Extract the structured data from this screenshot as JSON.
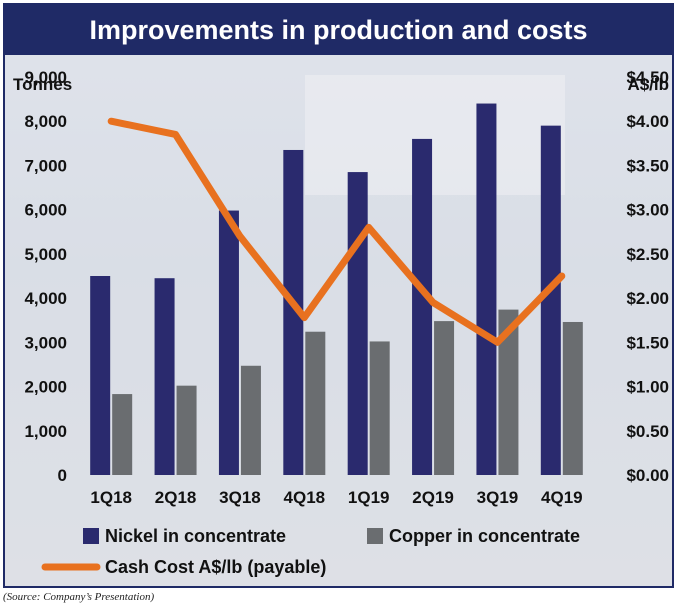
{
  "chart_data": {
    "type": "bar",
    "title": "Improvements in production and costs",
    "categories": [
      "1Q18",
      "2Q18",
      "3Q18",
      "4Q18",
      "1Q19",
      "2Q19",
      "3Q19",
      "4Q19"
    ],
    "series": [
      {
        "name": "Nickel in concentrate",
        "type": "bar",
        "axis": "left",
        "color": "#2a2a6e",
        "values": [
          4500,
          4450,
          5980,
          7350,
          6850,
          7600,
          8400,
          7900
        ]
      },
      {
        "name": "Copper in concentrate",
        "type": "bar",
        "axis": "left",
        "color": "#6a6d70",
        "values": [
          1830,
          2020,
          2470,
          3240,
          3020,
          3480,
          3740,
          3460
        ]
      },
      {
        "name": "Cash Cost A$/lb (payable)",
        "type": "line",
        "axis": "right",
        "color": "#e8711f",
        "values": [
          4.0,
          3.85,
          2.7,
          1.78,
          2.8,
          1.95,
          1.5,
          2.25
        ]
      }
    ],
    "ylabel": "Tonnes",
    "y2label": "A$/lb",
    "ylim": [
      0,
      9000
    ],
    "y2lim": [
      0,
      4.5
    ],
    "yticks": [
      "0",
      "1,000",
      "2,000",
      "3,000",
      "4,000",
      "5,000",
      "6,000",
      "7,000",
      "8,000",
      "9,000"
    ],
    "y2ticks": [
      "$0.00",
      "$0.50",
      "$1.00",
      "$1.50",
      "$2.00",
      "$2.50",
      "$3.00",
      "$3.50",
      "$4.00",
      "$4.50"
    ],
    "grid": false,
    "legend_placement": "bottom"
  },
  "source_note": "(Source: Company’s Presentation)"
}
